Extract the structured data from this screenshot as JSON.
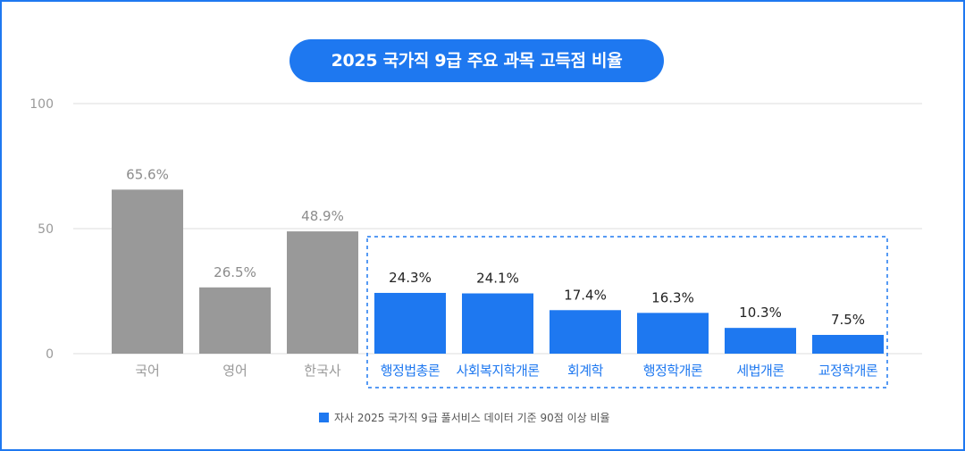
{
  "title": "2025 국가직 9급 주요 과목 고득점 비율",
  "legend": {
    "label": "자사 2025 국가직 9급 풀서비스 데이터 기준 90점 이상 비율",
    "color": "#1e78f0"
  },
  "colors": {
    "gray_bar": "#999999",
    "blue_bar": "#1e78f0",
    "gray_label": "#8c8c8c",
    "value_dark": "#222222",
    "axis_text": "#9a9a9a",
    "grid": "#dddddd",
    "highlight_box": "#1e78f0"
  },
  "chart_data": {
    "type": "bar",
    "title": "2025 국가직 9급 주요 과목 고득점 비율",
    "xlabel": "",
    "ylabel": "",
    "ylim": [
      0,
      100
    ],
    "yticks": [
      0,
      50,
      100
    ],
    "grid": true,
    "categories": [
      "국어",
      "영어",
      "한국사",
      "행정법총론",
      "사회복지학개론",
      "회계학",
      "행정학개론",
      "세법개론",
      "교정학개론"
    ],
    "values": [
      65.6,
      26.5,
      48.9,
      24.3,
      24.1,
      17.4,
      16.3,
      10.3,
      7.5
    ],
    "value_labels": [
      "65.6%",
      "26.5%",
      "48.9%",
      "24.3%",
      "24.1%",
      "17.4%",
      "16.3%",
      "10.3%",
      "7.5%"
    ],
    "groups": [
      "gray",
      "gray",
      "gray",
      "blue",
      "blue",
      "blue",
      "blue",
      "blue",
      "blue"
    ],
    "highlighted_range": [
      "행정법총론",
      "교정학개론"
    ],
    "legend_position": "bottom"
  }
}
